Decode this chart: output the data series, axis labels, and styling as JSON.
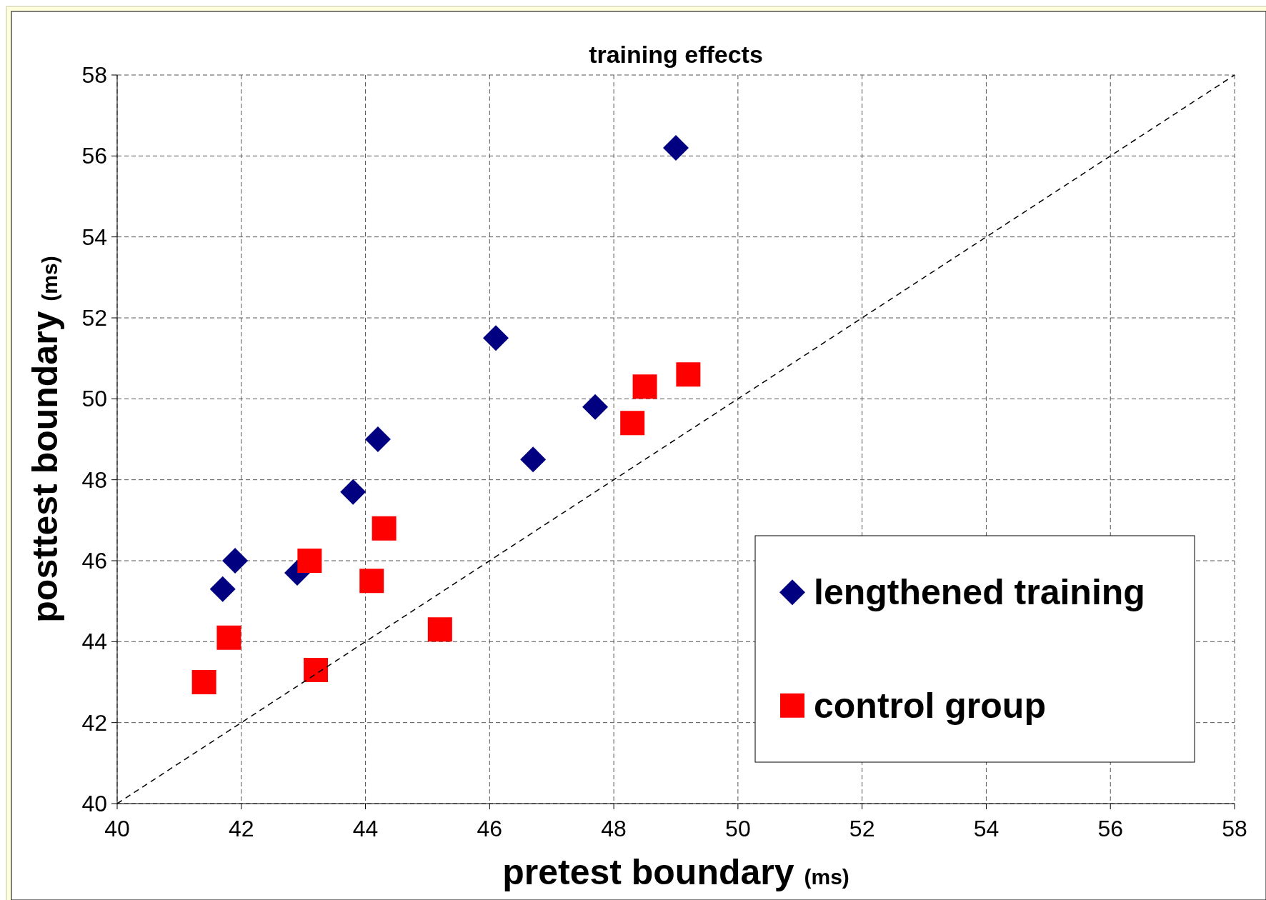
{
  "chart_data": {
    "type": "scatter",
    "title": "training effects",
    "xlabel": "pretest boundary (ms)",
    "ylabel": "posttest boundary (ms)",
    "xlim": [
      40,
      58
    ],
    "ylim": [
      40,
      58
    ],
    "xticks": [
      40,
      42,
      44,
      46,
      48,
      50,
      52,
      54,
      56,
      58
    ],
    "yticks": [
      40,
      42,
      44,
      46,
      48,
      50,
      52,
      54,
      56,
      58
    ],
    "grid": true,
    "legend": "bottom right",
    "series": [
      {
        "name": "lengthened training",
        "color": "#000080",
        "marker": "diamond",
        "x": [
          49.0,
          46.1,
          47.7,
          46.7,
          44.2,
          43.8,
          41.9,
          41.7,
          42.9
        ],
        "values": [
          56.2,
          51.5,
          49.8,
          48.5,
          49.0,
          47.7,
          46.0,
          45.3,
          45.7
        ]
      },
      {
        "name": "control group",
        "color": "#ff0000",
        "marker": "square",
        "x": [
          49.2,
          48.5,
          48.3,
          44.3,
          43.1,
          44.1,
          45.2,
          43.2,
          41.8,
          41.4
        ],
        "values": [
          50.6,
          50.3,
          49.4,
          46.8,
          46.0,
          45.5,
          44.3,
          43.3,
          44.1,
          43.0
        ]
      },
      {
        "type": "line",
        "color": "#000000",
        "line_style": "dashed",
        "marker": "none",
        "x": [
          40,
          58
        ],
        "values": [
          40,
          58
        ]
      }
    ]
  }
}
